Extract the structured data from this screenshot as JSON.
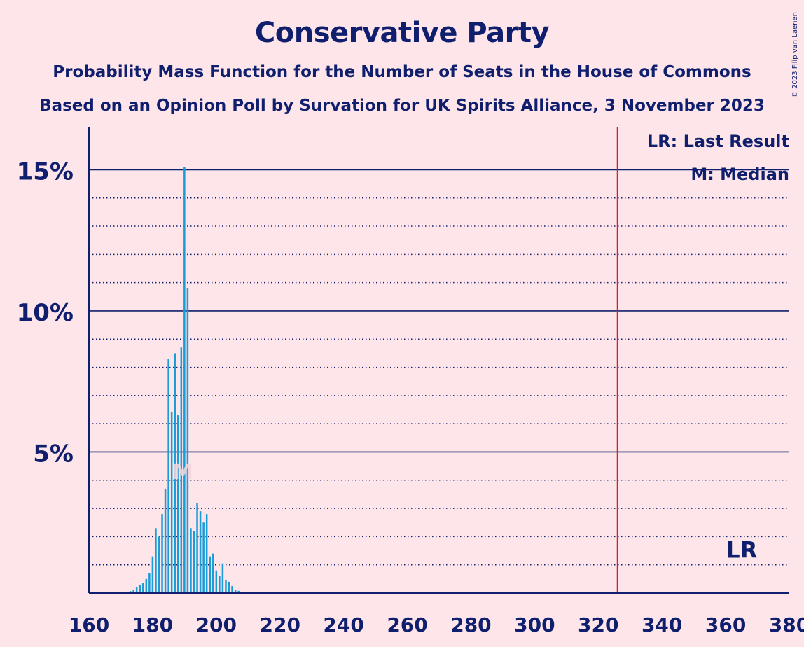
{
  "title": "Conservative Party",
  "subtitle1": "Probability Mass Function for the Number of Seats in the House of Commons",
  "subtitle2": "Based on an Opinion Poll by Survation for UK Spirits Alliance, 3 November 2023",
  "copyright": "© 2023 Filip van Laenen",
  "legend": {
    "lr": "LR: Last Result",
    "median": "M: Median"
  },
  "colors": {
    "background": "#fde5e9",
    "text": "#0f1f6e",
    "bar": "#1a9cd6",
    "last_result_line": "#d0202a"
  },
  "chart_data": {
    "type": "bar",
    "xlabel": "",
    "ylabel": "",
    "xlim": [
      160,
      380
    ],
    "ylim": [
      0,
      16.5
    ],
    "x_ticks": [
      "160",
      "180",
      "200",
      "220",
      "240",
      "260",
      "280",
      "300",
      "320",
      "340",
      "360",
      "380"
    ],
    "y_ticks": [
      {
        "value": 15,
        "label": "15%"
      },
      {
        "value": 10,
        "label": "10%"
      },
      {
        "value": 5,
        "label": "5%"
      }
    ],
    "minor_gridlines": [
      1,
      2,
      3,
      4,
      6,
      7,
      8,
      9,
      11,
      12,
      13,
      14
    ],
    "grid": true,
    "median": {
      "seats": 189,
      "label": "M"
    },
    "last_result": {
      "seats": 365,
      "label": "LR"
    },
    "majority_line": 326,
    "seats": [
      168,
      169,
      170,
      171,
      172,
      173,
      174,
      175,
      176,
      177,
      178,
      179,
      180,
      181,
      182,
      183,
      184,
      185,
      186,
      187,
      188,
      189,
      190,
      191,
      192,
      193,
      194,
      195,
      196,
      197,
      198,
      199,
      200,
      201,
      202,
      203,
      204,
      205,
      206,
      207,
      208,
      209,
      210,
      211,
      212
    ],
    "probability": [
      0.02,
      0.02,
      0.03,
      0.04,
      0.05,
      0.07,
      0.1,
      0.2,
      0.3,
      0.35,
      0.5,
      0.7,
      1.3,
      2.3,
      2.0,
      2.8,
      3.7,
      8.3,
      6.4,
      8.5,
      6.3,
      8.7,
      15.1,
      10.8,
      2.3,
      2.2,
      3.2,
      2.9,
      2.5,
      2.8,
      1.3,
      1.4,
      0.8,
      0.6,
      1.05,
      0.45,
      0.4,
      0.25,
      0.1,
      0.08,
      0.05,
      0.03,
      0.02,
      0.02,
      0.01
    ]
  }
}
